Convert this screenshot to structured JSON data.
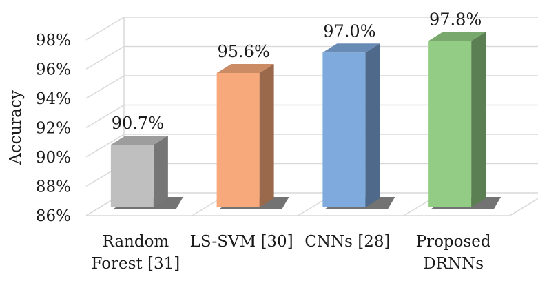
{
  "chart_data": {
    "type": "bar",
    "title": "",
    "xlabel": "",
    "ylabel": "Accuracy",
    "ylim": [
      86,
      98
    ],
    "y_ticks": [
      "86%",
      "88%",
      "90%",
      "92%",
      "94%",
      "96%",
      "98%"
    ],
    "categories": [
      [
        "Random",
        "Forest [31]"
      ],
      [
        "LS-SVM [30]"
      ],
      [
        "CNNs [28]"
      ],
      [
        "Proposed",
        "DRNNs"
      ]
    ],
    "values": [
      90.7,
      95.6,
      97.0,
      97.8
    ],
    "value_labels": [
      "90.7%",
      "95.6%",
      "97.0%",
      "97.8%"
    ],
    "colors": [
      "#bfbfbf",
      "#f8a97b",
      "#7faade",
      "#93cd85"
    ],
    "grid": true,
    "style": "3d-column"
  }
}
